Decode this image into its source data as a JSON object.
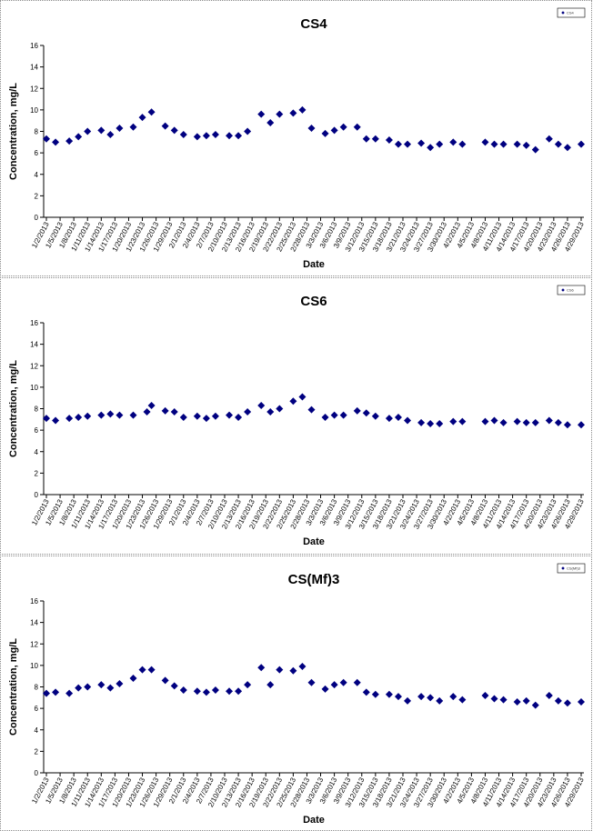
{
  "chart_data": [
    {
      "type": "scatter",
      "title": "CS4",
      "xlabel": "Date",
      "ylabel": "Concentration, mg/L",
      "ylim": [
        0,
        16
      ],
      "yticks": [
        0,
        2,
        4,
        6,
        8,
        10,
        12,
        14,
        16
      ],
      "grid": false,
      "legend": "top-right",
      "x_tick_labels": [
        "1/2/2013",
        "1/5/2013",
        "1/8/2013",
        "1/11/2013",
        "1/14/2013",
        "1/17/2013",
        "1/20/2013",
        "1/23/2013",
        "1/26/2013",
        "1/29/2013",
        "2/1/2013",
        "2/4/2013",
        "2/7/2013",
        "2/10/2013",
        "2/13/2013",
        "2/16/2013",
        "2/19/2013",
        "2/22/2013",
        "2/25/2013",
        "2/28/2013",
        "3/3/2013",
        "3/6/2013",
        "3/9/2013",
        "3/12/2013",
        "3/15/2013",
        "3/18/2013",
        "3/21/2013",
        "3/24/2013",
        "3/27/2013",
        "3/30/2013",
        "4/2/2013",
        "4/5/2013",
        "4/8/2013",
        "4/11/2013",
        "4/14/2013",
        "4/17/2013",
        "4/20/2013",
        "4/23/2013",
        "4/26/2013",
        "4/29/2013"
      ],
      "series": [
        {
          "name": "CS4",
          "color": "#000080",
          "marker": "diamond",
          "x": [
            "1/2/2013",
            "1/4/2013",
            "1/7/2013",
            "1/9/2013",
            "1/11/2013",
            "1/14/2013",
            "1/16/2013",
            "1/18/2013",
            "1/21/2013",
            "1/23/2013",
            "1/25/2013",
            "1/28/2013",
            "1/30/2013",
            "2/1/2013",
            "2/4/2013",
            "2/6/2013",
            "2/8/2013",
            "2/11/2013",
            "2/13/2013",
            "2/15/2013",
            "2/18/2013",
            "2/20/2013",
            "2/22/2013",
            "2/25/2013",
            "2/27/2013",
            "3/1/2013",
            "3/4/2013",
            "3/6/2013",
            "3/8/2013",
            "3/11/2013",
            "3/13/2013",
            "3/15/2013",
            "3/18/2013",
            "3/20/2013",
            "3/22/2013",
            "3/25/2013",
            "3/27/2013",
            "3/29/2013",
            "4/1/2013",
            "4/3/2013",
            "4/8/2013",
            "4/10/2013",
            "4/12/2013",
            "4/15/2013",
            "4/17/2013",
            "4/19/2013",
            "4/22/2013",
            "4/24/2013",
            "4/26/2013",
            "4/29/2013"
          ],
          "y": [
            7.3,
            7.0,
            7.1,
            7.5,
            8.0,
            8.1,
            7.7,
            8.3,
            8.4,
            9.3,
            9.8,
            8.5,
            8.1,
            7.7,
            7.5,
            7.6,
            7.7,
            7.6,
            7.6,
            8.0,
            9.6,
            8.8,
            9.6,
            9.7,
            10.0,
            8.3,
            7.8,
            8.1,
            8.4,
            8.4,
            7.3,
            7.3,
            7.2,
            6.8,
            6.8,
            6.9,
            6.5,
            6.8,
            7.0,
            6.8,
            7.0,
            6.8,
            6.8,
            6.8,
            6.7,
            6.3,
            7.3,
            6.8,
            6.5,
            6.8
          ]
        }
      ]
    },
    {
      "type": "scatter",
      "title": "CS6",
      "xlabel": "Date",
      "ylabel": "Concentration, mg/L",
      "ylim": [
        0,
        16
      ],
      "yticks": [
        0,
        2,
        4,
        6,
        8,
        10,
        12,
        14,
        16
      ],
      "grid": false,
      "legend": "top-right",
      "x_tick_labels": [
        "1/2/2013",
        "1/5/2013",
        "1/8/2013",
        "1/11/2013",
        "1/14/2013",
        "1/17/2013",
        "1/20/2013",
        "1/23/2013",
        "1/26/2013",
        "1/29/2013",
        "2/1/2013",
        "2/4/2013",
        "2/7/2013",
        "2/10/2013",
        "2/13/2013",
        "2/16/2013",
        "2/19/2013",
        "2/22/2013",
        "2/25/2013",
        "2/28/2013",
        "3/3/2013",
        "3/6/2013",
        "3/9/2013",
        "3/12/2013",
        "3/15/2013",
        "3/18/2013",
        "3/21/2013",
        "3/24/2013",
        "3/27/2013",
        "3/30/2013",
        "4/2/2013",
        "4/5/2013",
        "4/8/2013",
        "4/11/2013",
        "4/14/2013",
        "4/17/2013",
        "4/20/2013",
        "4/23/2013",
        "4/26/2013",
        "4/29/2013"
      ],
      "series": [
        {
          "name": "CS6",
          "color": "#000080",
          "marker": "diamond",
          "x": [
            "1/2/2013",
            "1/4/2013",
            "1/7/2013",
            "1/9/2013",
            "1/11/2013",
            "1/14/2013",
            "1/16/2013",
            "1/18/2013",
            "1/21/2013",
            "1/24/2013",
            "1/25/2013",
            "1/28/2013",
            "1/30/2013",
            "2/1/2013",
            "2/4/2013",
            "2/6/2013",
            "2/8/2013",
            "2/11/2013",
            "2/13/2013",
            "2/15/2013",
            "2/18/2013",
            "2/20/2013",
            "2/22/2013",
            "2/25/2013",
            "2/27/2013",
            "3/1/2013",
            "3/4/2013",
            "3/6/2013",
            "3/8/2013",
            "3/11/2013",
            "3/13/2013",
            "3/15/2013",
            "3/18/2013",
            "3/20/2013",
            "3/22/2013",
            "3/25/2013",
            "3/27/2013",
            "3/29/2013",
            "4/1/2013",
            "4/3/2013",
            "4/8/2013",
            "4/10/2013",
            "4/12/2013",
            "4/15/2013",
            "4/17/2013",
            "4/19/2013",
            "4/22/2013",
            "4/24/2013",
            "4/26/2013",
            "4/29/2013"
          ],
          "y": [
            7.1,
            6.9,
            7.1,
            7.2,
            7.3,
            7.4,
            7.5,
            7.4,
            7.4,
            7.7,
            8.3,
            7.8,
            7.7,
            7.2,
            7.3,
            7.1,
            7.3,
            7.4,
            7.2,
            7.7,
            8.3,
            7.7,
            8.0,
            8.7,
            9.1,
            7.9,
            7.2,
            7.4,
            7.4,
            7.8,
            7.6,
            7.3,
            7.1,
            7.2,
            6.9,
            6.7,
            6.6,
            6.6,
            6.8,
            6.8,
            6.8,
            6.9,
            6.7,
            6.8,
            6.7,
            6.7,
            6.9,
            6.7,
            6.5,
            6.5
          ]
        }
      ]
    },
    {
      "type": "scatter",
      "title": "CS(Mf)3",
      "xlabel": "Date",
      "ylabel": "Concentration, mg/L",
      "ylim": [
        0,
        16
      ],
      "yticks": [
        0,
        2,
        4,
        6,
        8,
        10,
        12,
        14,
        16
      ],
      "grid": false,
      "legend": "top-right",
      "x_tick_labels": [
        "1/2/2013",
        "1/5/2013",
        "1/8/2013",
        "1/11/2013",
        "1/14/2013",
        "1/17/2013",
        "1/20/2013",
        "1/23/2013",
        "1/26/2013",
        "1/29/2013",
        "2/1/2013",
        "2/4/2013",
        "2/7/2013",
        "2/10/2013",
        "2/13/2013",
        "2/16/2013",
        "2/19/2013",
        "2/22/2013",
        "2/25/2013",
        "2/28/2013",
        "3/3/2013",
        "3/6/2013",
        "3/9/2013",
        "3/12/2013",
        "3/15/2013",
        "3/18/2013",
        "3/21/2013",
        "3/24/2013",
        "3/27/2013",
        "3/30/2013",
        "4/2/2013",
        "4/5/2013",
        "4/8/2013",
        "4/11/2013",
        "4/14/2013",
        "4/17/2013",
        "4/20/2013",
        "4/23/2013",
        "4/26/2013",
        "4/29/2013"
      ],
      "series": [
        {
          "name": "CS(Mf)3",
          "color": "#000080",
          "marker": "diamond",
          "x": [
            "1/2/2013",
            "1/4/2013",
            "1/7/2013",
            "1/9/2013",
            "1/11/2013",
            "1/14/2013",
            "1/16/2013",
            "1/18/2013",
            "1/21/2013",
            "1/23/2013",
            "1/25/2013",
            "1/28/2013",
            "1/30/2013",
            "2/1/2013",
            "2/4/2013",
            "2/6/2013",
            "2/8/2013",
            "2/11/2013",
            "2/13/2013",
            "2/15/2013",
            "2/18/2013",
            "2/20/2013",
            "2/22/2013",
            "2/25/2013",
            "2/27/2013",
            "3/1/2013",
            "3/4/2013",
            "3/6/2013",
            "3/8/2013",
            "3/11/2013",
            "3/13/2013",
            "3/15/2013",
            "3/18/2013",
            "3/20/2013",
            "3/22/2013",
            "3/25/2013",
            "3/27/2013",
            "3/29/2013",
            "4/1/2013",
            "4/3/2013",
            "4/8/2013",
            "4/10/2013",
            "4/12/2013",
            "4/15/2013",
            "4/17/2013",
            "4/19/2013",
            "4/22/2013",
            "4/24/2013",
            "4/26/2013",
            "4/29/2013"
          ],
          "y": [
            7.4,
            7.5,
            7.4,
            7.9,
            8.0,
            8.2,
            7.9,
            8.3,
            8.8,
            9.6,
            9.6,
            8.6,
            8.1,
            7.7,
            7.6,
            7.5,
            7.7,
            7.6,
            7.6,
            8.2,
            9.8,
            8.2,
            9.6,
            9.5,
            9.9,
            8.4,
            7.8,
            8.2,
            8.4,
            8.4,
            7.5,
            7.3,
            7.3,
            7.1,
            6.7,
            7.1,
            7.0,
            6.7,
            7.1,
            6.8,
            7.2,
            6.9,
            6.8,
            6.6,
            6.7,
            6.3,
            7.2,
            6.7,
            6.5,
            6.6
          ]
        }
      ]
    }
  ]
}
